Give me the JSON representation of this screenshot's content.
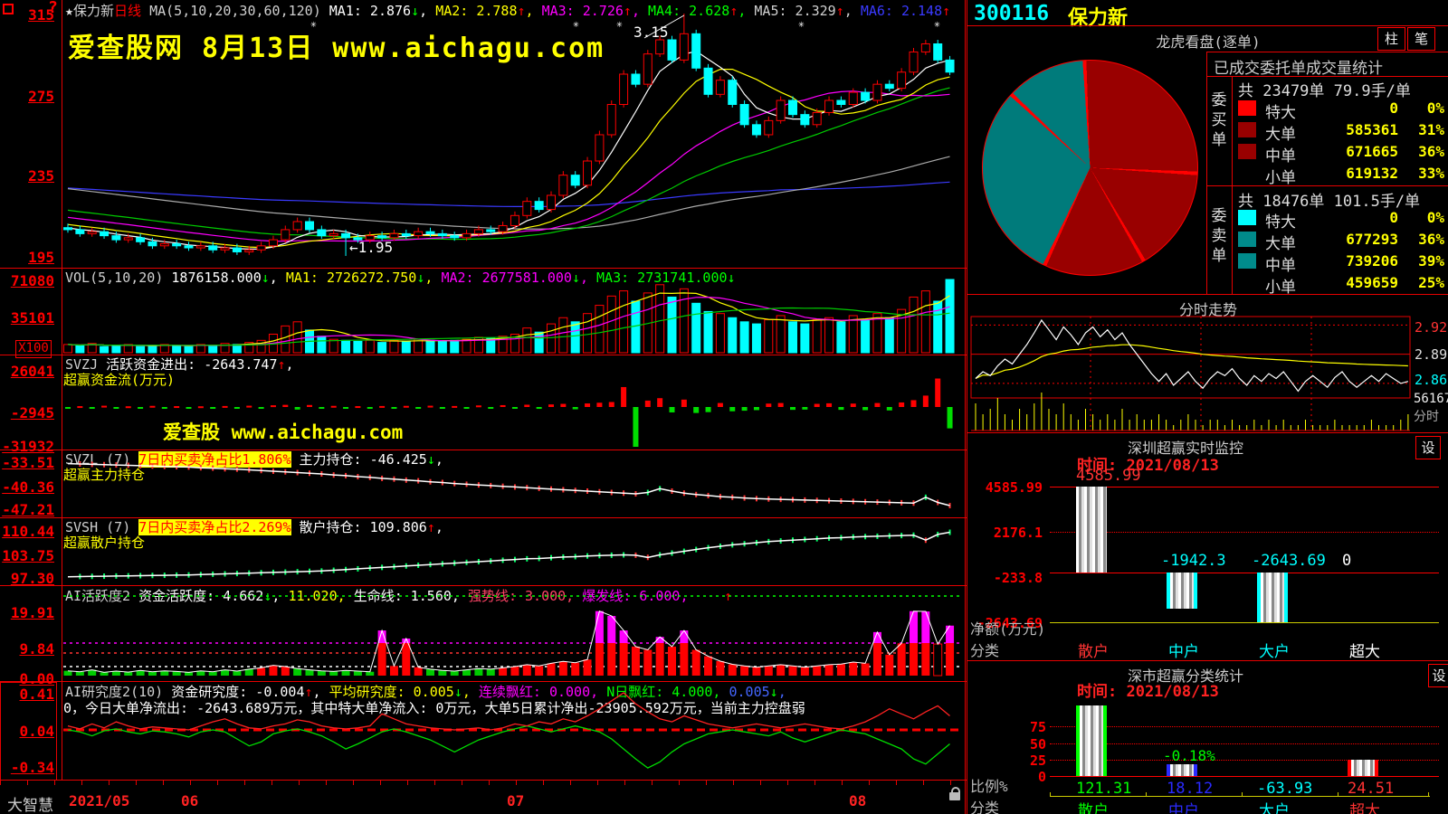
{
  "main": {
    "ylabels": [
      "315",
      "275",
      "235",
      "195"
    ],
    "header": [
      {
        "t": "★",
        "c": "#e8e8e8"
      },
      {
        "t": "保力新",
        "c": "#d0d0d0"
      },
      {
        "t": "日线",
        "c": "#ff0000"
      },
      {
        "t": " MA(5,10,20,30,60,120) ",
        "c": "#d0d0d0"
      },
      {
        "t": "MA1: 2.876",
        "c": "#ffffff"
      },
      {
        "t": "↓",
        "c": "#00ff00"
      },
      {
        "t": ", ",
        "c": "#ffffff"
      },
      {
        "t": "MA2: 2.788",
        "c": "#ffff00"
      },
      {
        "t": "↑",
        "c": "#ff0000"
      },
      {
        "t": ", ",
        "c": "#ffff00"
      },
      {
        "t": "MA3: 2.726",
        "c": "#ff00ff"
      },
      {
        "t": "↑",
        "c": "#ff0000"
      },
      {
        "t": ", ",
        "c": "#ff00ff"
      },
      {
        "t": "MA4: 2.628",
        "c": "#00ff00"
      },
      {
        "t": "↑",
        "c": "#ff0000"
      },
      {
        "t": ", ",
        "c": "#00ff00"
      },
      {
        "t": "MA5: 2.329",
        "c": "#d0d0d0"
      },
      {
        "t": "↑",
        "c": "#ff0000"
      },
      {
        "t": ", ",
        "c": "#d0d0d0"
      },
      {
        "t": "MA6: 2.148",
        "c": "#3a3aff"
      },
      {
        "t": "↑",
        "c": "#ff0000"
      }
    ],
    "watermark": "爱查股网   8月13日   www.aichagu.com",
    "help_mark": "?",
    "ann_high": "3.15",
    "ann_low": "←1.95"
  },
  "vol": {
    "ylabels": [
      "71080",
      "35101"
    ],
    "unit": "X100",
    "header": [
      {
        "t": "VOL(5,10,20) ",
        "c": "#d0d0d0"
      },
      {
        "t": "1876158.000",
        "c": "#ffffff"
      },
      {
        "t": "↓",
        "c": "#00ff00"
      },
      {
        "t": ", ",
        "c": "#ffffff"
      },
      {
        "t": "MA1: 2726272.750",
        "c": "#ffff00"
      },
      {
        "t": "↓",
        "c": "#00ff00"
      },
      {
        "t": ", ",
        "c": "#ffff00"
      },
      {
        "t": "MA2: 2677581.000",
        "c": "#ff00ff"
      },
      {
        "t": "↓",
        "c": "#00ff00"
      },
      {
        "t": ", ",
        "c": "#ff00ff"
      },
      {
        "t": "MA3: 2731741.000",
        "c": "#00ff00"
      },
      {
        "t": "↓",
        "c": "#00ff00"
      }
    ]
  },
  "svzj": {
    "ylabels": [
      "26041",
      "-2945",
      "-31932"
    ],
    "header": [
      {
        "t": "SVZJ  ",
        "c": "#d0d0d0"
      },
      {
        "t": "活跃资金进出: -2643.747",
        "c": "#ffffff"
      },
      {
        "t": "↑",
        "c": "#ff0000"
      },
      {
        "t": ",",
        "c": "#ffffff"
      }
    ],
    "header2": "超赢资金流(万元)",
    "watermark": "爱查股 www.aichagu.com"
  },
  "svzl": {
    "ylabels": [
      "-33.51",
      "-40.36",
      "-47.21"
    ],
    "header": [
      {
        "t": "SVZL (7) ",
        "c": "#d0d0d0"
      },
      {
        "t": "7日内买卖净占比1.806%",
        "c": "#ff0000",
        "b": "#ffff00"
      },
      {
        "t": " 主力持仓: -46.425",
        "c": "#ffffff"
      },
      {
        "t": "↓",
        "c": "#00ff00"
      },
      {
        "t": ",",
        "c": "#ffffff"
      }
    ],
    "header2": "超赢主力持仓"
  },
  "svsh": {
    "ylabels": [
      "110.44",
      "103.75",
      "97.30"
    ],
    "header": [
      {
        "t": "SVSH (7) ",
        "c": "#d0d0d0"
      },
      {
        "t": "7日内买卖净占比2.269%",
        "c": "#ff0000",
        "b": "#ffff00"
      },
      {
        "t": " 散户持仓: 109.806",
        "c": "#ffffff"
      },
      {
        "t": "↑",
        "c": "#ff0000"
      },
      {
        "t": ",",
        "c": "#ffffff"
      }
    ],
    "header2": "超赢散户持仓"
  },
  "ai1": {
    "ylabels": [
      "19.91",
      "9.84",
      "0.00"
    ],
    "header": [
      {
        "t": "AI活跃度2 ",
        "c": "#d0d0d0"
      },
      {
        "t": "资金活跃度: 4.662",
        "c": "#ffffff"
      },
      {
        "t": "↓",
        "c": "#00ff00"
      },
      {
        "t": ", ",
        "c": "#ffffff"
      },
      {
        "t": "11.020, ",
        "c": "#ffff00"
      },
      {
        "t": "生命线: 1.560, ",
        "c": "#ffffff"
      },
      {
        "t": "强势线: 3.000, ",
        "c": "#ff4466"
      },
      {
        "t": "爆发线: 6.000,",
        "c": "#ff00ff"
      }
    ],
    "arrow": "↑"
  },
  "ai2": {
    "ylabels": [
      "0.41",
      "0.04",
      "-0.34"
    ],
    "header": [
      {
        "t": "AI研究度2(10) ",
        "c": "#d0d0d0"
      },
      {
        "t": "资金研究度: -0.004",
        "c": "#ffffff"
      },
      {
        "t": "↑",
        "c": "#ff0000"
      },
      {
        "t": ", ",
        "c": "#ffffff"
      },
      {
        "t": "平均研究度: 0.005",
        "c": "#ffff00"
      },
      {
        "t": "↓",
        "c": "#00ff00"
      },
      {
        "t": ", ",
        "c": "#ffff00"
      },
      {
        "t": "连续飘红: 0.000, ",
        "c": "#ff00ff"
      },
      {
        "t": "N日飘红: 4.000, ",
        "c": "#00ff00"
      },
      {
        "t": "0.005",
        "c": "#4466ff"
      },
      {
        "t": "↓",
        "c": "#00ff00"
      },
      {
        "t": ",",
        "c": "#4466ff"
      }
    ],
    "header2": "0，今日大单净流出: -2643.689万元，其中特大单净流入: 0万元，大单5日累计净出-23905.592万元，当前主力控盘弱"
  },
  "xaxis": {
    "dates": [
      "2021/05",
      "06",
      "07",
      "08"
    ]
  },
  "status": {
    "app": "大智慧"
  },
  "right": {
    "code": "300116",
    "name": "保力新",
    "lh_title": "龙虎看盘(逐单)",
    "btn_col": "柱",
    "btn_pen": "笔",
    "table_title": "已成交委托单成交量统计",
    "buy": {
      "side": "委买单",
      "summary": "共 23479单 79.9手/单",
      "rows": [
        {
          "name": "特大",
          "value": "0",
          "pct": "0%",
          "swatch": "#ff0000"
        },
        {
          "name": "大单",
          "value": "585361",
          "pct": "31%",
          "swatch": "#990000"
        },
        {
          "name": "中单",
          "value": "671665",
          "pct": "36%",
          "swatch": "#990000"
        },
        {
          "name": "小单",
          "value": "619132",
          "pct": "33%",
          "swatch": ""
        }
      ]
    },
    "sell": {
      "side": "委卖单",
      "summary": "共 18476单 101.5手/单",
      "rows": [
        {
          "name": "特大",
          "value": "0",
          "pct": "0%",
          "swatch": "#00ffff"
        },
        {
          "name": "大单",
          "value": "677293",
          "pct": "36%",
          "swatch": "#008b8b"
        },
        {
          "name": "中单",
          "value": "739206",
          "pct": "39%",
          "swatch": "#008b8b"
        },
        {
          "name": "小单",
          "value": "459659",
          "pct": "25%",
          "swatch": ""
        }
      ]
    },
    "fs": {
      "title": "分时走势",
      "label_high": "2.920",
      "label_mid": "2.890",
      "label_last": "2.860",
      "label_vol": "56167",
      "label_tag": "分时"
    },
    "sz1": {
      "title": "深圳超赢实时监控",
      "btn": "设",
      "time": "时间: 2021/08/13",
      "ylabels": [
        "4585.99",
        "2176.1",
        "-233.8",
        "-2643.69"
      ],
      "cats_label": "分类",
      "axis_label": "净额(万元)",
      "cats": [
        "散户",
        "中户",
        "大户",
        "超大"
      ],
      "cat_colors": [
        "#ff3333",
        "#00ffff",
        "#00ffff",
        "#ffffff"
      ],
      "value_labels": [
        "4585.99",
        "-1942.3",
        "-2643.69",
        "0"
      ],
      "value_colors": [
        "#ff3333",
        "#00ffff",
        "#00ffff",
        "#ffffff"
      ]
    },
    "sz2": {
      "title": "深市超赢分类统计",
      "btn": "设",
      "time": "时间: 2021/08/13",
      "ylabels": [
        "75",
        "50",
        "25",
        "0"
      ],
      "ratio_label": "比例%",
      "cats_label": "分类",
      "pct_label": "-0.18%",
      "cats": [
        "散户",
        "中户",
        "大户",
        "超大"
      ],
      "cat_colors": [
        "#00ff00",
        "#2a2aff",
        "#00ffff",
        "#ff3333"
      ],
      "value_labels": [
        "121.31",
        "18.12",
        "-63.93",
        "24.51"
      ],
      "value_colors": [
        "#00ff00",
        "#2a2aff",
        "#00ffff",
        "#ff3333"
      ]
    }
  },
  "chart_data": {
    "type": "candlestick+indicators",
    "title": "保力新 300116 日线 2021/05 - 2021/08/13",
    "ylim_price": [
      1.95,
      3.15
    ],
    "closes": [
      2.08,
      2.06,
      2.07,
      2.05,
      2.03,
      2.04,
      2.02,
      2.0,
      2.01,
      2.0,
      1.99,
      2.0,
      1.98,
      1.99,
      1.97,
      1.98,
      2.0,
      2.03,
      2.08,
      2.12,
      2.08,
      2.05,
      2.06,
      2.04,
      2.03,
      2.05,
      2.04,
      2.06,
      2.05,
      2.07,
      2.06,
      2.05,
      2.04,
      2.06,
      2.08,
      2.07,
      2.1,
      2.15,
      2.22,
      2.18,
      2.25,
      2.35,
      2.3,
      2.42,
      2.55,
      2.7,
      2.85,
      2.8,
      2.95,
      3.02,
      2.92,
      3.05,
      2.88,
      2.75,
      2.82,
      2.7,
      2.6,
      2.55,
      2.62,
      2.72,
      2.65,
      2.6,
      2.66,
      2.72,
      2.7,
      2.76,
      2.72,
      2.8,
      2.78,
      2.86,
      2.96,
      3.0,
      2.92,
      2.86
    ],
    "volumes": [
      8000,
      7000,
      9000,
      6000,
      7000,
      8000,
      6000,
      7000,
      8000,
      7000,
      6000,
      8000,
      7000,
      9000,
      8000,
      10000,
      12000,
      18000,
      26000,
      30000,
      22000,
      16000,
      13000,
      12000,
      11000,
      12000,
      10000,
      12000,
      11000,
      13000,
      12000,
      11000,
      12000,
      13000,
      15000,
      14000,
      16000,
      18000,
      24000,
      20000,
      28000,
      34000,
      30000,
      38000,
      46000,
      55000,
      60000,
      50000,
      58000,
      66000,
      54000,
      62000,
      48000,
      40000,
      38000,
      34000,
      30000,
      28000,
      32000,
      36000,
      30000,
      28000,
      32000,
      34000,
      30000,
      36000,
      32000,
      38000,
      34000,
      42000,
      54000,
      60000,
      50000,
      71080
    ],
    "svzj": [
      -800,
      600,
      -500,
      900,
      -700,
      500,
      -600,
      800,
      -900,
      600,
      -700,
      500,
      -800,
      700,
      -600,
      900,
      -700,
      1200,
      1500,
      -1800,
      1400,
      -900,
      800,
      -700,
      600,
      -800,
      700,
      -600,
      800,
      -700,
      900,
      -800,
      700,
      -900,
      1100,
      -800,
      1300,
      -1100,
      1600,
      -1300,
      1800,
      2200,
      -1600,
      2500,
      3000,
      3500,
      14000,
      -30000,
      4500,
      6200,
      -3800,
      5200,
      -4200,
      -3600,
      2800,
      -3000,
      -2600,
      -2200,
      2400,
      2800,
      -2000,
      -1800,
      2200,
      2600,
      -2000,
      2400,
      -2200,
      2800,
      -2400,
      3200,
      4800,
      8000,
      20000,
      -15000
    ],
    "svzl": [
      -34.2,
      -34.3,
      -34.4,
      -34.5,
      -34.6,
      -34.7,
      -34.8,
      -34.9,
      -35.0,
      -35.1,
      -35.2,
      -35.4,
      -35.5,
      -35.7,
      -35.8,
      -36.0,
      -36.2,
      -36.4,
      -36.6,
      -36.8,
      -37.0,
      -37.2,
      -37.5,
      -37.7,
      -38.0,
      -38.2,
      -38.5,
      -38.7,
      -39.0,
      -39.2,
      -39.5,
      -39.7,
      -40.0,
      -40.2,
      -40.4,
      -40.6,
      -40.8,
      -41.0,
      -41.2,
      -41.4,
      -41.6,
      -41.8,
      -42.0,
      -42.2,
      -42.4,
      -42.6,
      -42.8,
      -43.0,
      -42.6,
      -41.5,
      -42.2,
      -42.8,
      -43.2,
      -43.5,
      -43.8,
      -44.0,
      -44.2,
      -44.4,
      -44.5,
      -44.6,
      -44.7,
      -44.8,
      -44.9,
      -45.0,
      -45.1,
      -45.2,
      -45.3,
      -45.4,
      -45.5,
      -45.6,
      -45.7,
      -44.0,
      -45.5,
      -46.425
    ],
    "svsh": [
      97.4,
      97.45,
      97.5,
      97.55,
      97.6,
      97.65,
      97.7,
      97.75,
      97.8,
      97.85,
      97.9,
      98.0,
      98.1,
      98.2,
      98.3,
      98.4,
      98.5,
      98.6,
      98.7,
      98.8,
      98.9,
      99.0,
      99.2,
      99.4,
      99.6,
      99.8,
      100.0,
      100.2,
      100.4,
      100.6,
      100.8,
      101.0,
      101.2,
      101.4,
      101.6,
      101.8,
      102.0,
      102.2,
      102.4,
      102.5,
      102.7,
      102.9,
      103.0,
      103.2,
      103.3,
      103.4,
      103.5,
      103.4,
      102.8,
      103.5,
      104.0,
      104.5,
      105.0,
      105.5,
      105.9,
      106.3,
      106.6,
      106.9,
      107.2,
      107.4,
      107.6,
      107.8,
      108.0,
      108.2,
      108.3,
      108.5,
      108.6,
      108.7,
      108.8,
      108.9,
      109.0,
      107.6,
      109.2,
      109.806
    ],
    "ai1": [
      1.5,
      1.2,
      1.8,
      1.0,
      1.4,
      1.1,
      1.6,
      1.2,
      1.5,
      1.3,
      1.0,
      1.5,
      1.2,
      1.8,
      1.4,
      2.0,
      2.4,
      3.2,
      2.8,
      2.2,
      1.8,
      1.5,
      1.3,
      1.6,
      1.4,
      1.2,
      14.0,
      3.0,
      11.5,
      2.6,
      2.0,
      1.6,
      1.4,
      1.8,
      2.2,
      2.0,
      2.4,
      2.8,
      3.4,
      3.0,
      3.8,
      4.4,
      4.0,
      5.0,
      20.0,
      18.5,
      14.0,
      9.0,
      8.0,
      12.0,
      9.0,
      14.0,
      8.0,
      6.0,
      4.5,
      3.5,
      3.0,
      2.6,
      3.0,
      3.4,
      3.0,
      2.6,
      3.0,
      3.4,
      3.6,
      4.2,
      3.8,
      13.5,
      6.5,
      10.0,
      20.0,
      19.9,
      9.8,
      15.5
    ],
    "ai2_red": [
      0.08,
      0.05,
      0.1,
      0.06,
      0.12,
      0.08,
      0.05,
      0.07,
      0.06,
      0.05,
      0.04,
      0.08,
      0.12,
      0.15,
      0.1,
      0.06,
      0.05,
      0.08,
      0.1,
      0.14,
      0.12,
      0.08,
      0.06,
      0.05,
      0.06,
      0.08,
      0.2,
      0.15,
      0.1,
      0.08,
      0.06,
      0.05,
      0.04,
      0.05,
      0.06,
      0.04,
      0.06,
      0.1,
      0.08,
      0.12,
      0.1,
      0.15,
      0.12,
      0.18,
      0.25,
      0.33,
      0.41,
      0.3,
      0.22,
      0.15,
      0.12,
      0.18,
      0.14,
      0.1,
      0.08,
      0.06,
      0.08,
      0.1,
      0.08,
      0.06,
      0.08,
      0.1,
      0.08,
      0.06,
      0.05,
      0.08,
      0.12,
      0.18,
      0.25,
      0.2,
      0.15,
      0.22,
      0.28,
      0.18
    ],
    "ai2_green": [
      0.04,
      0.02,
      -0.02,
      0.03,
      0.05,
      0.02,
      0.0,
      0.03,
      0.02,
      0.0,
      -0.03,
      0.02,
      0.04,
      0.02,
      -0.05,
      -0.12,
      -0.08,
      0.0,
      0.03,
      0.05,
      0.02,
      -0.02,
      -0.08,
      -0.15,
      -0.1,
      -0.04,
      0.02,
      0.05,
      0.02,
      -0.02,
      -0.06,
      -0.12,
      -0.18,
      -0.12,
      -0.06,
      -0.02,
      0.02,
      0.05,
      0.08,
      0.05,
      0.02,
      0.05,
      0.08,
      0.05,
      0.02,
      -0.05,
      -0.15,
      -0.25,
      -0.34,
      -0.28,
      -0.18,
      -0.1,
      -0.05,
      0.0,
      0.02,
      0.04,
      0.02,
      0.0,
      -0.02,
      0.02,
      -0.04,
      -0.08,
      -0.04,
      0.0,
      0.04,
      0.02,
      0.0,
      -0.05,
      -0.1,
      -0.15,
      -0.25,
      -0.3,
      -0.2,
      -0.1
    ],
    "intraday_price": [
      2.865,
      2.872,
      2.868,
      2.878,
      2.885,
      2.88,
      2.89,
      2.9,
      2.912,
      2.925,
      2.915,
      2.905,
      2.918,
      2.91,
      2.9,
      2.912,
      2.918,
      2.908,
      2.915,
      2.905,
      2.912,
      2.9,
      2.89,
      2.88,
      2.87,
      2.862,
      2.87,
      2.858,
      2.865,
      2.872,
      2.862,
      2.855,
      2.865,
      2.872,
      2.868,
      2.875,
      2.865,
      2.858,
      2.868,
      2.862,
      2.87,
      2.865,
      2.872,
      2.862,
      2.852,
      2.862,
      2.868,
      2.862,
      2.856,
      2.866,
      2.872,
      2.862,
      2.856,
      2.862,
      2.868,
      2.862,
      2.87,
      2.865,
      2.86,
      2.862
    ],
    "intraday_vol": [
      5,
      3,
      4,
      6,
      3,
      2,
      4,
      3,
      5,
      7,
      4,
      3,
      5,
      3,
      2,
      4,
      3,
      2,
      3,
      2,
      4,
      2,
      3,
      2,
      2,
      3,
      2,
      1,
      2,
      3,
      2,
      1,
      2,
      2,
      1,
      2,
      1,
      1,
      2,
      1,
      2,
      1,
      2,
      1,
      1,
      2,
      1,
      1,
      1,
      2,
      1,
      1,
      1,
      1,
      2,
      1,
      1,
      1,
      2,
      3
    ],
    "sz1_values": [
      4585.99,
      -1942.3,
      -2643.69,
      0
    ],
    "sz2_values": [
      121.31,
      18.12,
      -63.93,
      24.51
    ],
    "pie_slices": [
      {
        "from": 0,
        "to": 92,
        "color": "#990000"
      },
      {
        "from": 94,
        "to": 149,
        "color": "#990000"
      },
      {
        "from": 151,
        "to": 204,
        "color": "#990000"
      },
      {
        "from": 206,
        "to": 312,
        "color": "#007b7b"
      },
      {
        "from": 314,
        "to": 356,
        "color": "#007b7b"
      },
      {
        "from": 358,
        "to": 360,
        "color": "#990000"
      }
    ]
  }
}
